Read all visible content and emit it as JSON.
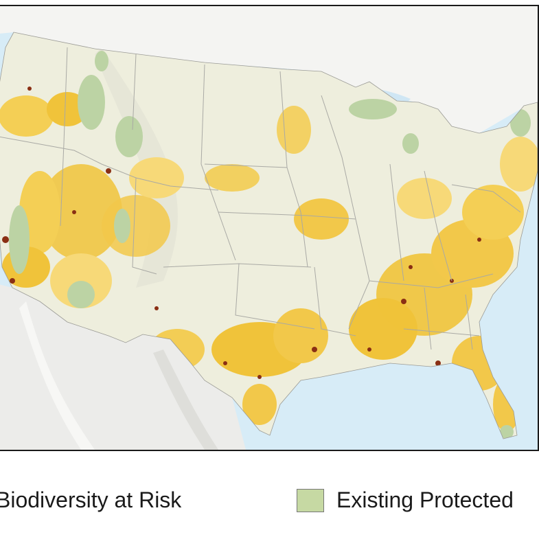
{
  "map": {
    "colors": {
      "ocean": "#d7ecf7",
      "mountain_shade": "#e6e6e4",
      "land": "#eeeedd",
      "state_border": "#a9a9a4",
      "high_risk": "#f0c33a",
      "medium_risk": "#f7d978",
      "very_high_risk": "#8a2f14",
      "protected": "#bcd3a4"
    }
  },
  "legend": {
    "risk_label": "Biodiversity at Risk",
    "protected_label": "Existing Protected",
    "protected_color": "#c6d9a3"
  }
}
